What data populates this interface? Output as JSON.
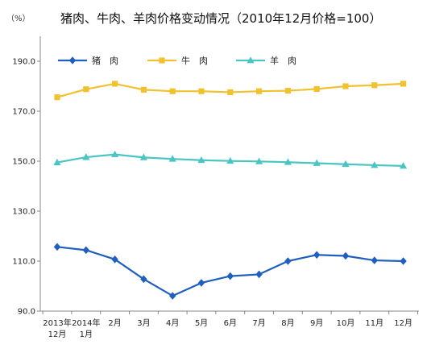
{
  "chart_data": {
    "type": "line",
    "title": "猪肉、牛肉、羊肉价格变动情况（2010年12月价格=100）",
    "y_unit": "（%）",
    "categories": [
      [
        "2013年",
        "12月"
      ],
      [
        "2014年",
        "1月"
      ],
      [
        "2月"
      ],
      [
        "3月"
      ],
      [
        "4月"
      ],
      [
        "5月"
      ],
      [
        "6月"
      ],
      [
        "7月"
      ],
      [
        "8月"
      ],
      [
        "9月"
      ],
      [
        "10月"
      ],
      [
        "11月"
      ],
      [
        "12月"
      ]
    ],
    "ylim": [
      90,
      200
    ],
    "yticks": [
      90,
      110,
      130,
      150,
      170,
      190
    ],
    "ytick_labels": [
      "90.0",
      "110.0",
      "130.0",
      "150.0",
      "170.0",
      "190.0"
    ],
    "grid": false,
    "legend_position": "top-left",
    "series": [
      {
        "name": "猪　肉",
        "color": "#1F5FBF",
        "marker": "diamond",
        "values": [
          115.7,
          114.4,
          110.7,
          102.8,
          96.1,
          101.3,
          104.0,
          104.7,
          110.0,
          112.5,
          112.1,
          110.3,
          110.0
        ]
      },
      {
        "name": "牛　肉",
        "color": "#F2C12E",
        "marker": "square",
        "values": [
          175.6,
          178.8,
          181.0,
          178.6,
          178.0,
          178.0,
          177.6,
          178.0,
          178.2,
          178.9,
          180.0,
          180.4,
          181.0
        ]
      },
      {
        "name": "羊　肉",
        "color": "#49C6C4",
        "marker": "triangle",
        "values": [
          149.5,
          151.6,
          152.7,
          151.5,
          150.9,
          150.4,
          150.1,
          149.9,
          149.6,
          149.2,
          148.8,
          148.4,
          148.1
        ]
      }
    ]
  }
}
